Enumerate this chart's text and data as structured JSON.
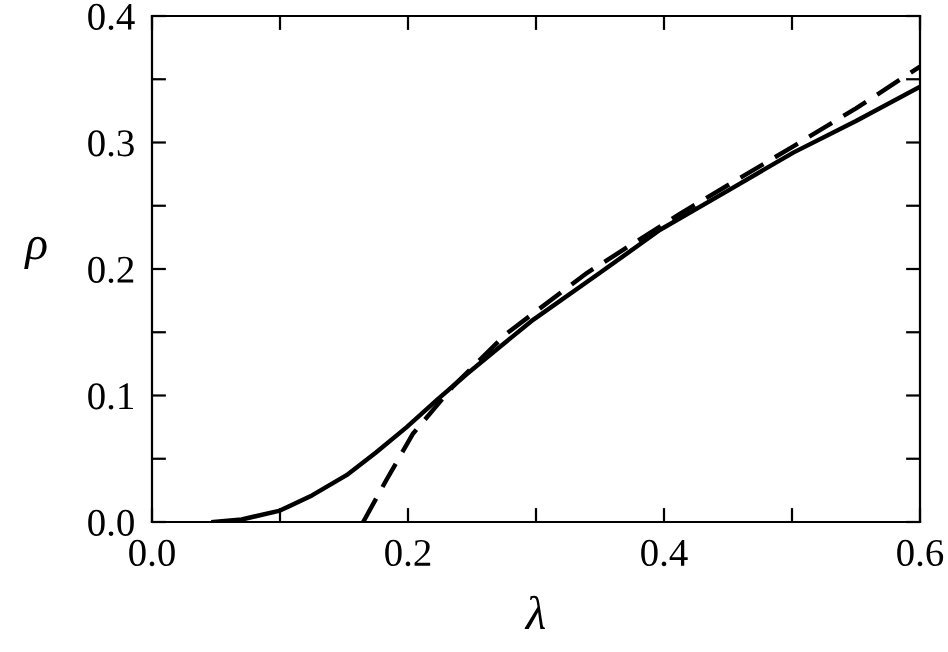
{
  "chart_data": {
    "type": "line",
    "xlabel": "λ",
    "ylabel": "ρ",
    "xlim": [
      0,
      0.6
    ],
    "ylim": [
      0,
      0.4
    ],
    "xticks": [
      {
        "value": 0,
        "label": "0.0"
      },
      {
        "value": 0.1,
        "label": null
      },
      {
        "value": 0.2,
        "label": "0.2"
      },
      {
        "value": 0.3,
        "label": null
      },
      {
        "value": 0.4,
        "label": "0.4"
      },
      {
        "value": 0.5,
        "label": null
      },
      {
        "value": 0.6,
        "label": "0.6"
      }
    ],
    "yticks": [
      {
        "value": 0,
        "label": "0.0"
      },
      {
        "value": 0.05,
        "label": null
      },
      {
        "value": 0.1,
        "label": "0.1"
      },
      {
        "value": 0.15,
        "label": null
      },
      {
        "value": 0.2,
        "label": "0.2"
      },
      {
        "value": 0.25,
        "label": null
      },
      {
        "value": 0.3,
        "label": "0.3"
      },
      {
        "value": 0.35,
        "label": null
      },
      {
        "value": 0.4,
        "label": "0.4"
      }
    ],
    "grid": false,
    "legend": false,
    "marker": "none",
    "series": [
      {
        "color": "#000000",
        "line_style": "solid",
        "x": [
          0.048,
          0.07,
          0.1,
          0.125,
          0.152,
          0.175,
          0.199,
          0.222,
          0.246,
          0.27,
          0.298,
          0.35,
          0.397,
          0.45,
          0.501,
          0.55,
          0.6
        ],
        "values": [
          0.0,
          0.002,
          0.009,
          0.021,
          0.037,
          0.055,
          0.075,
          0.096,
          0.117,
          0.137,
          0.16,
          0.197,
          0.231,
          0.262,
          0.292,
          0.317,
          0.344
        ]
      },
      {
        "color": "#000000",
        "line_style": "dashed",
        "x": [
          0.165,
          0.183,
          0.204,
          0.235,
          0.277,
          0.34,
          0.413,
          0.501,
          0.55,
          0.6
        ],
        "values": [
          0.0,
          0.033,
          0.07,
          0.107,
          0.149,
          0.197,
          0.244,
          0.297,
          0.327,
          0.36
        ]
      }
    ]
  }
}
